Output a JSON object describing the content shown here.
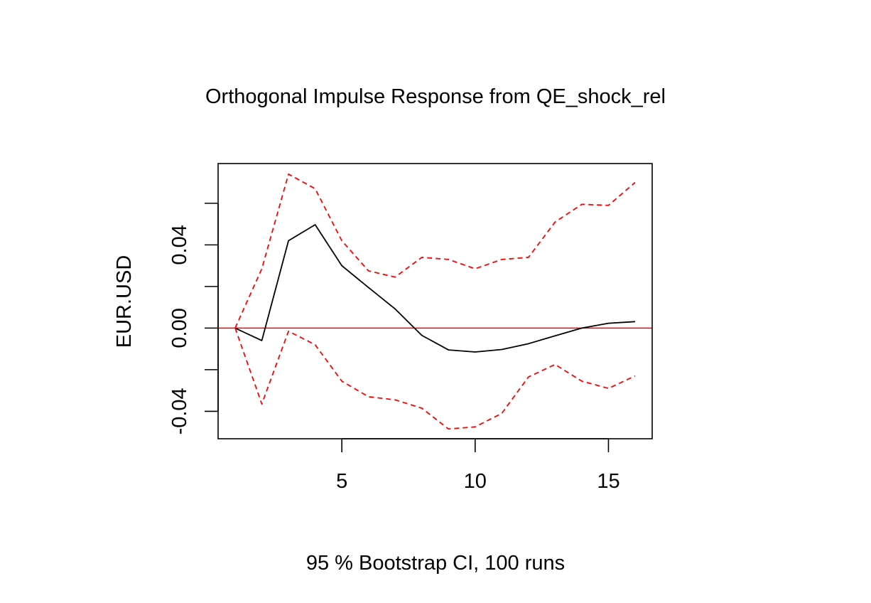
{
  "chart_data": {
    "type": "line",
    "title": "Orthogonal Impulse Response from QE_shock_rel",
    "xlabel": "95 % Bootstrap CI,  100 runs",
    "ylabel": "EUR.USD",
    "x": [
      1,
      2,
      3,
      4,
      5,
      6,
      7,
      8,
      9,
      10,
      11,
      12,
      13,
      14,
      15,
      16
    ],
    "xlim": [
      0.36,
      16.64
    ],
    "ylim": [
      -0.0532,
      0.0791
    ],
    "x_ticks": [
      5,
      10,
      15
    ],
    "x_tick_labels": [
      "5",
      "10",
      "15"
    ],
    "y_ticks": [
      -0.04,
      -0.02,
      0.0,
      0.02,
      0.04,
      0.06
    ],
    "y_tick_labels": [
      "-0.04",
      "",
      "0.00",
      "",
      "0.04",
      ""
    ],
    "zero_line": 0,
    "grid": false,
    "colors": {
      "response": "#000000",
      "ci": "#ff0000",
      "zero": "#ff0000"
    },
    "series": [
      {
        "values": [
          0.0,
          -0.006,
          0.042,
          0.0497,
          0.03,
          0.0195,
          0.0092,
          -0.0035,
          -0.0105,
          -0.0115,
          -0.0103,
          -0.0075,
          -0.0037,
          0.0,
          0.0023,
          0.0031
        ],
        "style": "solid",
        "color": "#000000"
      },
      {
        "values": [
          0.0,
          0.0285,
          0.074,
          0.067,
          0.042,
          0.0275,
          0.0245,
          0.034,
          0.033,
          0.0285,
          0.033,
          0.034,
          0.051,
          0.0595,
          0.059,
          0.07
        ],
        "style": "dashed",
        "color": "#ff0000"
      },
      {
        "values": [
          0.0,
          -0.0365,
          -0.0015,
          -0.008,
          -0.0255,
          -0.033,
          -0.0345,
          -0.0385,
          -0.0485,
          -0.0475,
          -0.041,
          -0.0235,
          -0.0175,
          -0.0255,
          -0.029,
          -0.023
        ],
        "style": "dashed",
        "color": "#ff0000"
      }
    ]
  }
}
